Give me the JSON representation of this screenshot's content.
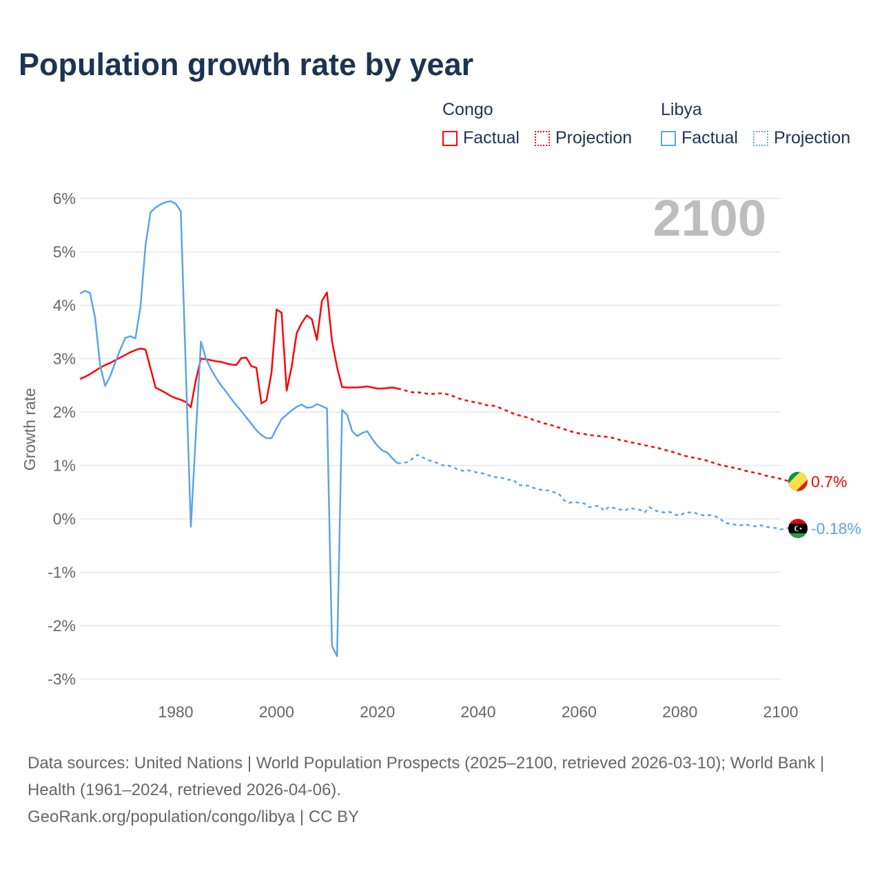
{
  "title": "Population growth rate by year",
  "legend": {
    "groups": [
      {
        "name": "Congo",
        "color": "#ff0000",
        "factual_label": "Factual",
        "projection_label": "Projection"
      },
      {
        "name": "Libya",
        "color": "#5ba3ea",
        "factual_label": "Factual",
        "projection_label": "Projection"
      }
    ]
  },
  "year_label": "2100",
  "footer": {
    "sources": "Data sources: United Nations | World Population Prospects (2025–2100, retrieved 2026-03-10); World Bank | Health (1961–2024, retrieved 2026-04-06).",
    "credit": "GeoRank.org/population/congo/libya | CC BY"
  },
  "chart_data": {
    "type": "line",
    "title": "Population growth rate by year",
    "xlabel": "",
    "ylabel": "Growth rate",
    "xlim": [
      1961,
      2100
    ],
    "ylim": [
      -3.4,
      6.3
    ],
    "x_ticks": [
      1980,
      2000,
      2020,
      2040,
      2060,
      2080,
      2100
    ],
    "x_tick_labels": [
      "1980",
      "2000",
      "2020",
      "2040",
      "2060",
      "2080",
      "2100"
    ],
    "y_ticks": [
      -3,
      -2,
      -1,
      0,
      1,
      2,
      3,
      4,
      5,
      6
    ],
    "y_tick_labels": [
      "-3%",
      "-2%",
      "-1%",
      "0%",
      "1%",
      "2%",
      "3%",
      "4%",
      "5%",
      "6%"
    ],
    "grid": true,
    "legend_position": "top-right",
    "factual_start": 1961,
    "projection_start": 2024,
    "series": [
      {
        "name": "Congo",
        "color": "#ff0000",
        "end_label": "0.7%",
        "factual": [
          2.62,
          2.66,
          2.71,
          2.77,
          2.83,
          2.88,
          2.92,
          2.97,
          3.02,
          3.07,
          3.12,
          3.16,
          3.19,
          3.17,
          2.82,
          2.46,
          2.41,
          2.36,
          2.3,
          2.26,
          2.23,
          2.19,
          2.09,
          2.6,
          3.0,
          2.99,
          2.97,
          2.95,
          2.94,
          2.91,
          2.89,
          2.88,
          3.01,
          3.02,
          2.86,
          2.83,
          2.16,
          2.22,
          2.74,
          3.92,
          3.86,
          2.4,
          2.85,
          3.48,
          3.67,
          3.81,
          3.74,
          3.35,
          4.08,
          4.24,
          3.33,
          2.84,
          2.47,
          2.46,
          2.46,
          2.46,
          2.47,
          2.48,
          2.46,
          2.44,
          2.44,
          2.45,
          2.46,
          2.44
        ],
        "projection": [
          2.44,
          2.42,
          2.39,
          2.37,
          2.37,
          2.36,
          2.34,
          2.34,
          2.35,
          2.35,
          2.33,
          2.3,
          2.26,
          2.23,
          2.21,
          2.19,
          2.17,
          2.15,
          2.12,
          2.12,
          2.09,
          2.05,
          2.01,
          1.97,
          1.94,
          1.92,
          1.89,
          1.85,
          1.82,
          1.79,
          1.77,
          1.74,
          1.71,
          1.68,
          1.65,
          1.62,
          1.6,
          1.59,
          1.57,
          1.56,
          1.55,
          1.54,
          1.53,
          1.51,
          1.48,
          1.46,
          1.44,
          1.42,
          1.4,
          1.38,
          1.36,
          1.34,
          1.32,
          1.29,
          1.27,
          1.24,
          1.21,
          1.18,
          1.16,
          1.14,
          1.12,
          1.1,
          1.07,
          1.04,
          1.01,
          0.99,
          0.97,
          0.95,
          0.93,
          0.9,
          0.88,
          0.86,
          0.84,
          0.81,
          0.79,
          0.77,
          0.75,
          0.72,
          0.7
        ]
      },
      {
        "name": "Libya",
        "color": "#5ba3ea",
        "end_label": "-0.18%",
        "factual": [
          4.22,
          4.27,
          4.23,
          3.77,
          2.88,
          2.49,
          2.67,
          2.93,
          3.17,
          3.39,
          3.42,
          3.38,
          3.96,
          5.11,
          5.74,
          5.83,
          5.89,
          5.93,
          5.95,
          5.9,
          5.76,
          2.8,
          -0.15,
          1.6,
          3.32,
          3.0,
          2.8,
          2.64,
          2.5,
          2.38,
          2.25,
          2.13,
          2.02,
          1.9,
          1.78,
          1.66,
          1.57,
          1.51,
          1.51,
          1.69,
          1.87,
          1.95,
          2.03,
          2.1,
          2.14,
          2.08,
          2.09,
          2.15,
          2.11,
          2.07,
          -2.38,
          -2.57,
          2.04,
          1.95,
          1.64,
          1.55,
          1.61,
          1.64,
          1.49,
          1.37,
          1.28,
          1.24,
          1.13,
          1.04
        ],
        "projection": [
          1.04,
          1.05,
          1.06,
          1.13,
          1.2,
          1.15,
          1.1,
          1.08,
          1.04,
          1.0,
          1.0,
          0.97,
          0.92,
          0.9,
          0.91,
          0.89,
          0.86,
          0.85,
          0.82,
          0.78,
          0.78,
          0.76,
          0.73,
          0.73,
          0.63,
          0.63,
          0.62,
          0.58,
          0.55,
          0.54,
          0.53,
          0.5,
          0.47,
          0.35,
          0.3,
          0.32,
          0.3,
          0.29,
          0.22,
          0.24,
          0.24,
          0.15,
          0.23,
          0.2,
          0.18,
          0.15,
          0.2,
          0.19,
          0.17,
          0.12,
          0.22,
          0.16,
          0.13,
          0.12,
          0.13,
          0.08,
          0.06,
          0.12,
          0.12,
          0.11,
          0.08,
          0.06,
          0.07,
          0.05,
          0.0,
          -0.08,
          -0.09,
          -0.11,
          -0.12,
          -0.1,
          -0.13,
          -0.14,
          -0.12,
          -0.15,
          -0.16,
          -0.17,
          -0.2,
          -0.17,
          -0.18
        ]
      }
    ]
  }
}
